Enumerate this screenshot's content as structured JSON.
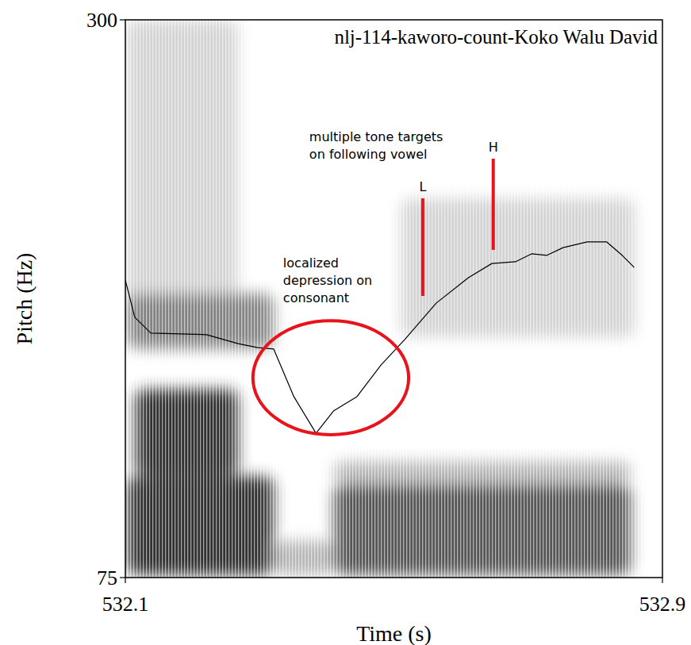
{
  "chart_data": {
    "type": "line",
    "title": "nlj-114-kaworo-count-Koko Walu David",
    "x_label": "Time (s)",
    "y_label": "Pitch (Hz)",
    "xlim": [
      532.1,
      532.9
    ],
    "ylim": [
      75,
      300
    ],
    "xticks": [
      532.1,
      532.9
    ],
    "yticks": [
      75,
      300
    ],
    "grid": false,
    "series": [
      {
        "name": "Pitch",
        "color": "#000000",
        "x": [
          532.1,
          532.114,
          532.138,
          532.221,
          532.268,
          532.297,
          532.321,
          532.351,
          532.384,
          532.41,
          532.445,
          532.481,
          532.516,
          532.563,
          532.611,
          532.646,
          532.681,
          532.705,
          532.728,
          532.752,
          532.788,
          532.817,
          532.84,
          532.858
        ],
        "values": [
          195,
          180,
          173.6,
          173,
          169.4,
          167.8,
          167.2,
          148,
          133.2,
          142.2,
          148,
          160.8,
          171,
          185.7,
          196,
          201.7,
          202.4,
          205.6,
          205,
          208.1,
          210.4,
          210.4,
          205,
          200.1
        ]
      }
    ],
    "spectrogram": [
      {
        "t0": 532.1,
        "t1": 532.268,
        "f0": 170,
        "f1": 300,
        "level": 0.18
      },
      {
        "t0": 532.102,
        "t1": 532.321,
        "f0": 167.2,
        "f1": 189.6,
        "level": 0.5
      },
      {
        "t0": 532.114,
        "t1": 532.268,
        "f0": 116,
        "f1": 151,
        "level": 0.85
      },
      {
        "t0": 532.102,
        "t1": 532.321,
        "f0": 75.9,
        "f1": 115.9,
        "level": 0.85
      },
      {
        "t0": 532.321,
        "t1": 532.41,
        "f0": 75.9,
        "f1": 90,
        "level": 0.3
      },
      {
        "t0": 532.41,
        "t1": 532.853,
        "f0": 75.9,
        "f1": 112.7,
        "level": 0.7
      },
      {
        "t0": 532.41,
        "t1": 532.853,
        "f0": 112.7,
        "f1": 122,
        "level": 0.3
      },
      {
        "t0": 532.51,
        "t1": 532.859,
        "f0": 172,
        "f1": 228,
        "level": 0.18
      }
    ],
    "annotations": [
      {
        "type": "ellipse",
        "color": "#e8141b",
        "x": 532.406,
        "y": 155.6,
        "rx": 0.116,
        "ry": 23,
        "lines": [
          "localized",
          "depression on",
          "consonant"
        ],
        "text_x": 532.335,
        "text_y": 200
      },
      {
        "type": "text",
        "color": "#000000",
        "lines": [
          "multiple tone targets",
          "on following vowel"
        ],
        "text_x": 532.374,
        "text_y": 251
      },
      {
        "type": "vline",
        "color": "#e8141b",
        "label": "L",
        "x": 532.543,
        "y0": 188.6,
        "y1": 228
      },
      {
        "type": "vline",
        "color": "#e8141b",
        "label": "H",
        "x": 532.648,
        "y0": 207.2,
        "y1": 244
      }
    ]
  }
}
